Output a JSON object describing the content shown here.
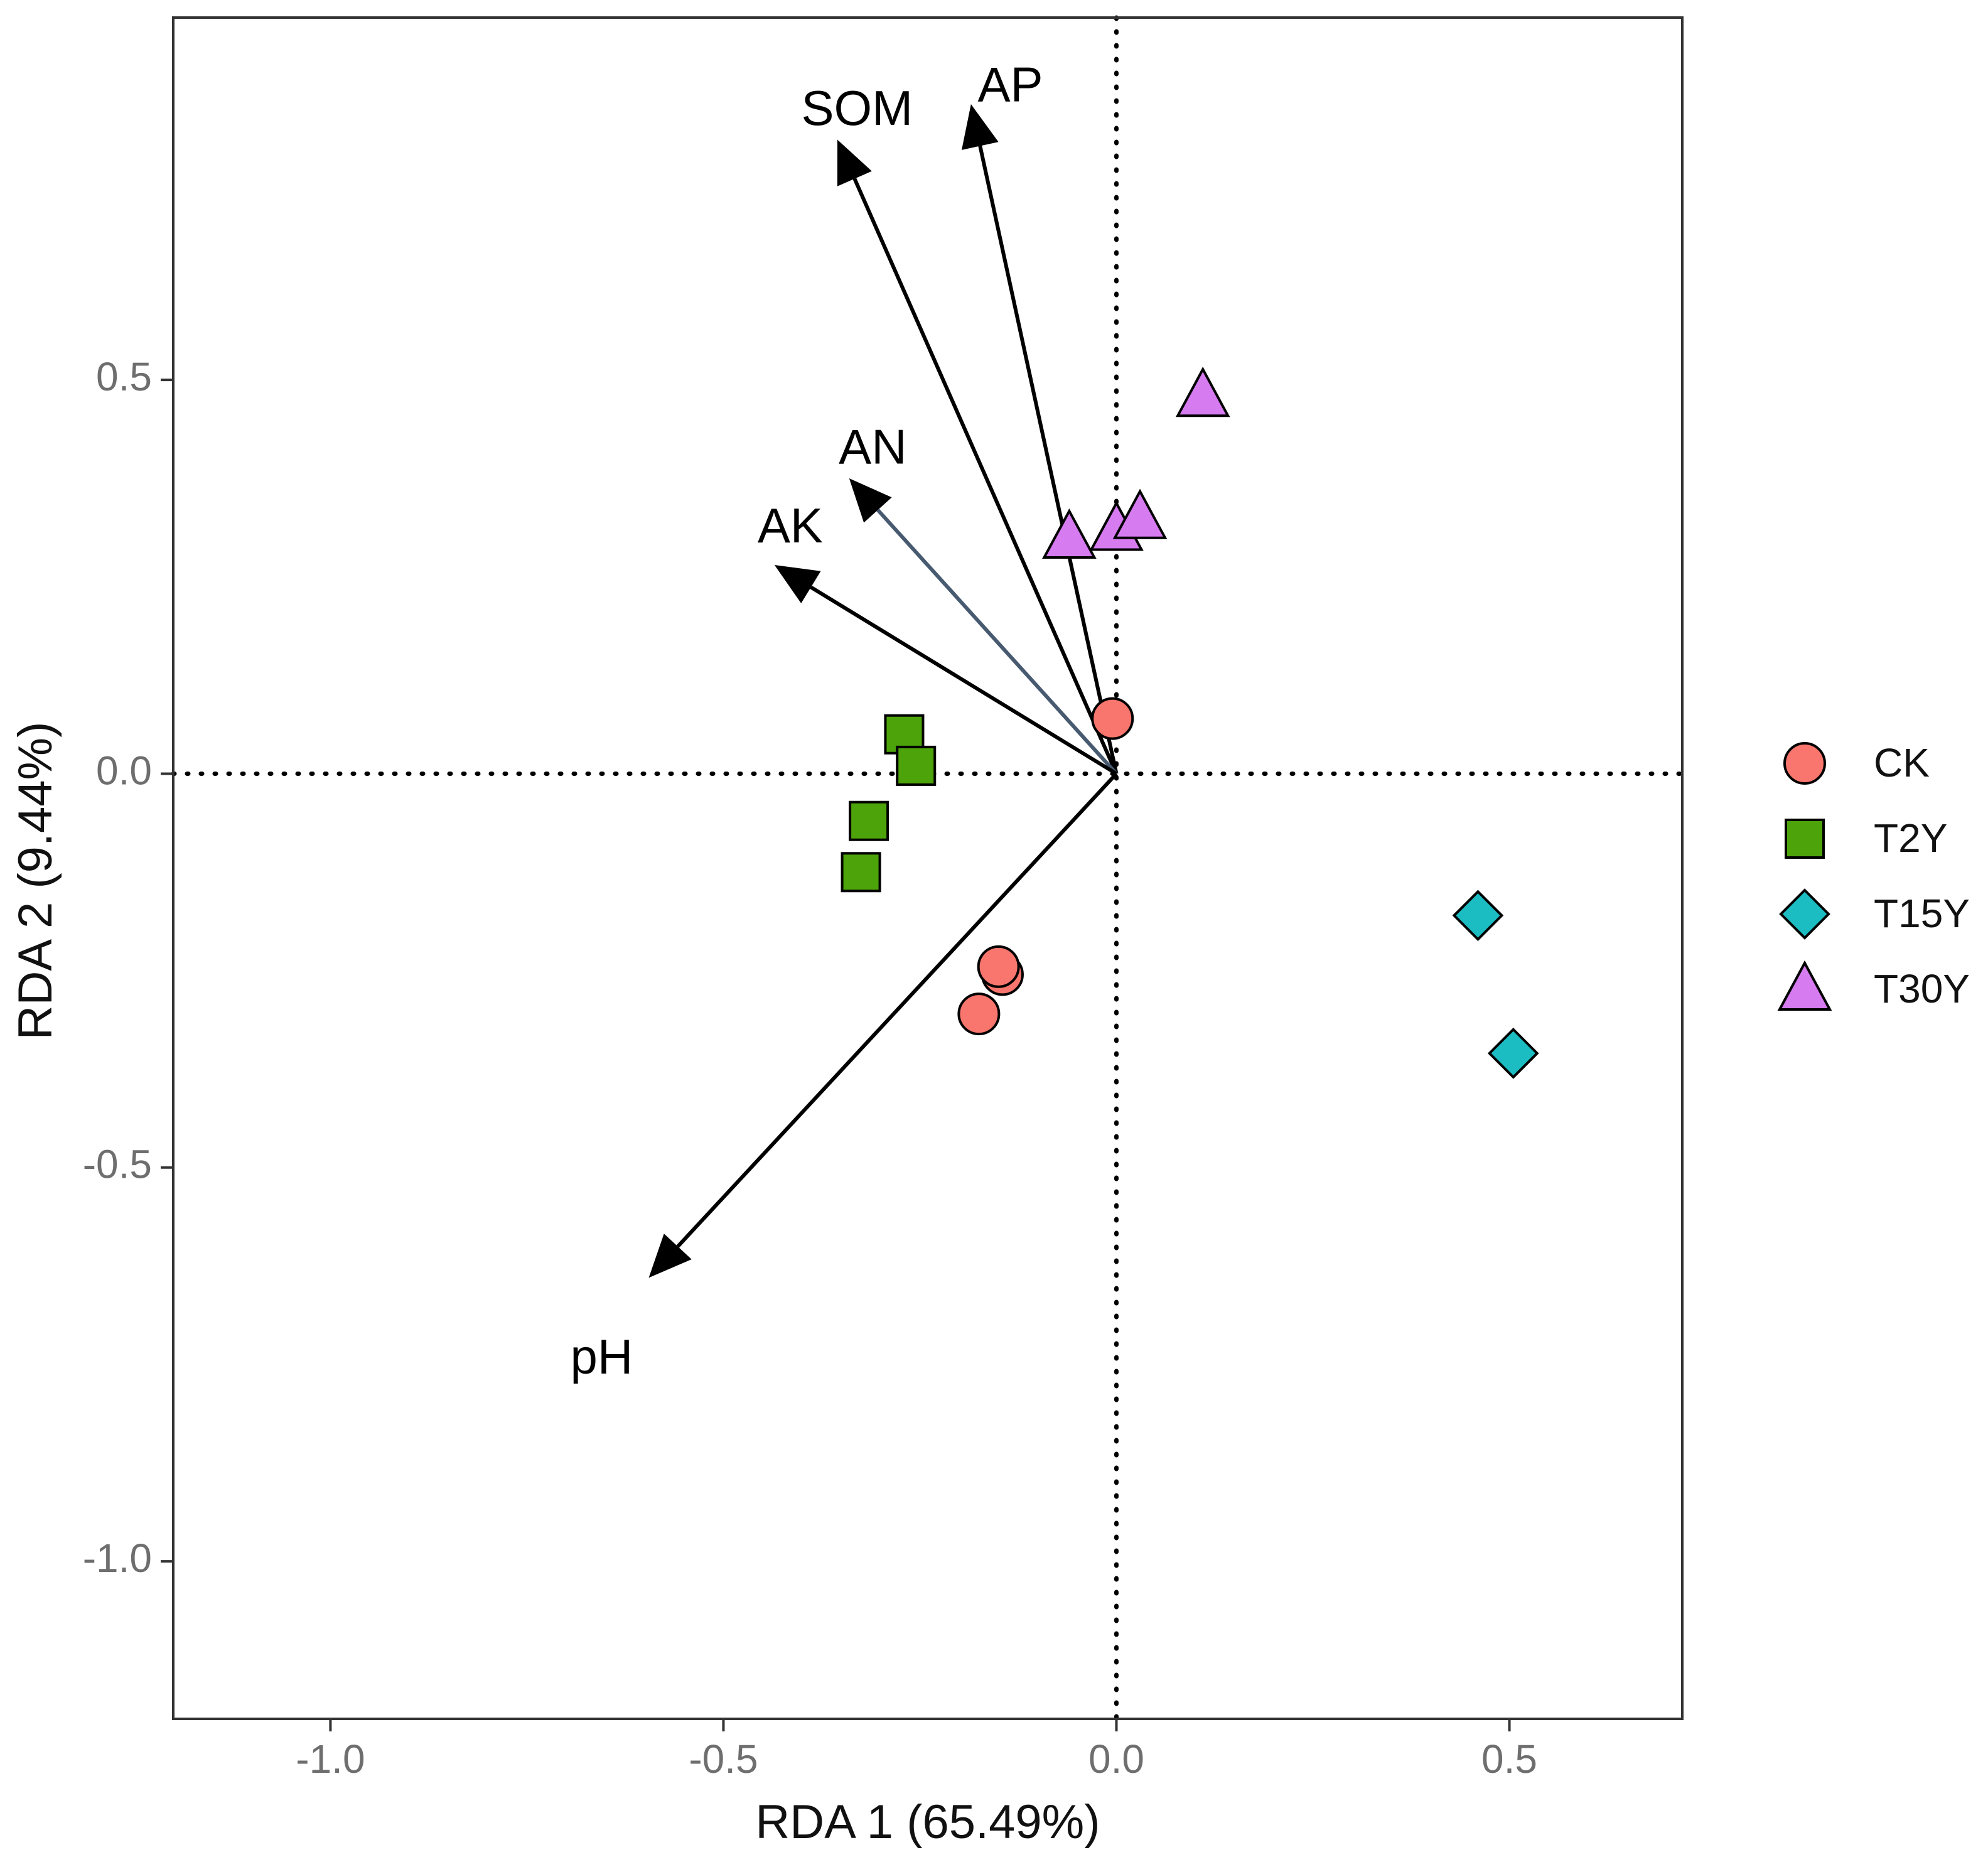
{
  "chart_data": {
    "type": "scatter",
    "subtype": "rda-biplot",
    "title": "",
    "xlabel": "RDA 1 (65.49%)",
    "ylabel": "RDA 2 (9.44%)",
    "xlim": [
      -1.2,
      0.72
    ],
    "ylim": [
      -1.2,
      0.96
    ],
    "xticks": [
      -1.0,
      -0.5,
      0.0,
      0.5
    ],
    "yticks": [
      0.5,
      0.0,
      -0.5,
      -1.0
    ],
    "xtick_labels": [
      "-1.0",
      "-0.5",
      "0.0",
      "0.5"
    ],
    "ytick_labels": [
      "0.5",
      "0.0",
      "-0.5",
      "-1.0"
    ],
    "reference_lines": {
      "x": 0,
      "y": 0,
      "style": "dotted"
    },
    "grid": false,
    "legend_position": "right",
    "series": [
      {
        "name": "CK",
        "marker": "circle",
        "color": "#f8766d",
        "points": [
          [
            -0.005,
            0.07
          ],
          [
            -0.145,
            -0.255
          ],
          [
            -0.15,
            -0.245
          ],
          [
            -0.175,
            -0.305
          ]
        ]
      },
      {
        "name": "T2Y",
        "marker": "square",
        "color": "#4da30a",
        "points": [
          [
            -0.27,
            0.05
          ],
          [
            -0.255,
            0.01
          ],
          [
            -0.315,
            -0.06
          ],
          [
            -0.325,
            -0.125
          ]
        ]
      },
      {
        "name": "T15Y",
        "marker": "diamond",
        "color": "#1cbdc2",
        "points": [
          [
            0.46,
            -0.18
          ],
          [
            0.505,
            -0.355
          ]
        ]
      },
      {
        "name": "T30Y",
        "marker": "triangle",
        "color": "#d67bf0",
        "points": [
          [
            0.11,
            0.48
          ],
          [
            -0.06,
            0.3
          ],
          [
            0.0,
            0.31
          ],
          [
            0.03,
            0.325
          ]
        ]
      }
    ],
    "arrows": [
      {
        "name": "SOM",
        "x": -0.355,
        "y": 0.805
      },
      {
        "name": "AP",
        "x": -0.185,
        "y": 0.85
      },
      {
        "name": "AN",
        "x": -0.34,
        "y": 0.375
      },
      {
        "name": "AK",
        "x": -0.435,
        "y": 0.265
      },
      {
        "name": "pH",
        "x": -0.595,
        "y": -0.64
      }
    ],
    "arrow_label_positions": {
      "SOM": [
        -0.33,
        0.84
      ],
      "AP": [
        -0.135,
        0.87
      ],
      "AN": [
        -0.31,
        0.41
      ],
      "AK": [
        -0.415,
        0.31
      ],
      "pH": [
        -0.655,
        -0.745
      ]
    }
  }
}
